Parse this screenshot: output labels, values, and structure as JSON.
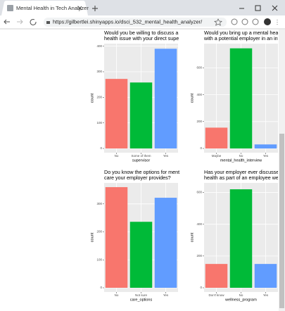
{
  "browser": {
    "tab_title": "Mental Health in Tech Analyzer",
    "url": "https://gilbertlei.shinyapps.io/dsci_532_mental_health_analyzer/"
  },
  "chart_data": [
    {
      "type": "bar",
      "title_lines": [
        "Would you be willing to discuss a",
        "health issue with your direct supe"
      ],
      "categories": [
        "No",
        "Some of them",
        "Yes"
      ],
      "values": [
        272,
        258,
        390
      ],
      "colors": [
        "#F8766D",
        "#00BA38",
        "#619CFF"
      ],
      "xlabel": "supervisor",
      "ylabel": "count",
      "ylim": [
        0,
        410
      ],
      "yticks": [
        0,
        100,
        200,
        300,
        400
      ],
      "grid": true
    },
    {
      "type": "bar",
      "title_lines": [
        "Would you bring up a mental heal",
        "with a potential employer in an int"
      ],
      "categories": [
        "Maybe",
        "No",
        "Yes"
      ],
      "values": [
        155,
        745,
        30
      ],
      "colors": [
        "#F8766D",
        "#00BA38",
        "#619CFF"
      ],
      "xlabel": "mental_health_interview",
      "ylabel": "count",
      "ylim": [
        0,
        780
      ],
      "yticks": [
        0,
        200,
        400,
        600
      ],
      "grid": true
    },
    {
      "type": "bar",
      "title_lines": [
        "Do you know the options for ment",
        "care your employer provides?"
      ],
      "categories": [
        "No",
        "Not sure",
        "Yes"
      ],
      "values": [
        360,
        236,
        322
      ],
      "colors": [
        "#F8766D",
        "#00BA38",
        "#619CFF"
      ],
      "xlabel": "care_options",
      "ylabel": "count",
      "ylim": [
        0,
        375
      ],
      "yticks": [
        0,
        100,
        200,
        300
      ],
      "grid": true
    },
    {
      "type": "bar",
      "title_lines": [
        "Has your employer ever discusse",
        "health as part of an employee wel"
      ],
      "categories": [
        "Don't know",
        "No",
        "Yes"
      ],
      "values": [
        150,
        620,
        150
      ],
      "colors": [
        "#F8766D",
        "#00BA38",
        "#619CFF"
      ],
      "xlabel": "wellness_program",
      "ylabel": "count",
      "ylim": [
        0,
        660
      ],
      "yticks": [
        0,
        200,
        400,
        600
      ],
      "grid": true
    }
  ]
}
